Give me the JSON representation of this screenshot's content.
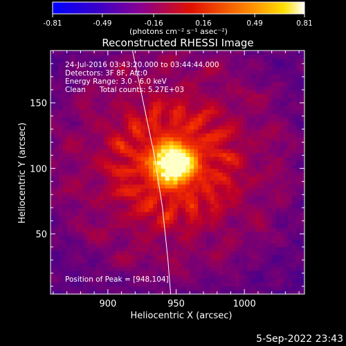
{
  "chart_data": {
    "type": "heatmap",
    "title": "Reconstructed RHESSI Image",
    "xlabel": "Heliocentric X (arcsec)",
    "ylabel": "Heliocentric Y (arcsec)",
    "xlim": [
      858,
      1044
    ],
    "ylim": [
      4,
      190
    ],
    "x_ticks": [
      900,
      950,
      1000
    ],
    "y_ticks": [
      50,
      100,
      150
    ],
    "colorbar": {
      "label": "(photons cm⁻² s⁻¹ asec⁻²)",
      "ticks": [
        "-0.81",
        "-0.49",
        "-0.16",
        "0.16",
        "0.49",
        "0.81"
      ],
      "range": [
        -0.81,
        0.81
      ]
    },
    "annotations": {
      "time": "24-Jul-2016 03:43:20.000 to 03:44:44.000",
      "detectors": "Detectors: 3F 8F, Att:0",
      "energy": "Energy Range: 3.0 - 6.0 keV",
      "method": "Clean",
      "counts": "Total counts: 5.27E+03",
      "peak": "Position of Peak = [948,104]"
    },
    "peak": {
      "x": 948,
      "y": 104,
      "value": 0.81
    },
    "limb_curve": {
      "x": [
        918,
        926,
        934,
        940,
        944,
        946
      ],
      "y": [
        190,
        150,
        110,
        70,
        30,
        4
      ]
    },
    "grid": false
  },
  "footer": {
    "date": "5-Sep-2022 23:43"
  }
}
